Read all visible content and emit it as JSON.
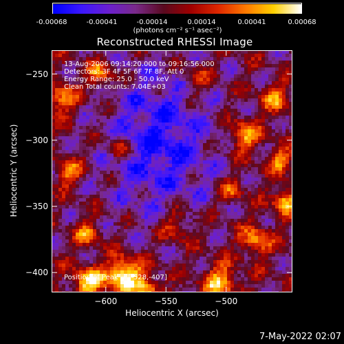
{
  "colorbar": {
    "ticks": [
      "-0.00068",
      "-0.00041",
      "-0.00014",
      "0.00014",
      "0.00041",
      "0.00068"
    ],
    "unit": "(photons cm⁻² s⁻¹ asec⁻²)",
    "colors": [
      "#0000ff",
      "#3b17ff",
      "#6b1fd0",
      "#7a2a8a",
      "#5a0a20",
      "#a00000",
      "#e02800",
      "#ff7a00",
      "#ffd000",
      "#ffffff"
    ]
  },
  "chart_data": {
    "type": "heatmap",
    "title": "Reconstructed RHESSI Image",
    "xlabel": "Heliocentric X (arcsec)",
    "ylabel": "Heliocentric Y (arcsec)",
    "xlim": [
      -645,
      -445
    ],
    "ylim": [
      -415,
      -232
    ],
    "xticks": [
      -600,
      -550,
      -500
    ],
    "yticks": [
      -250,
      -300,
      -350,
      -400
    ],
    "xtick_labels": [
      "−600",
      "−550",
      "−500"
    ],
    "ytick_labels": [
      "−250",
      "−300",
      "−350",
      "−400"
    ],
    "color_range": [
      -0.00068,
      0.00068
    ],
    "annotations": [
      "13-Aug-2006 09:14:20.000 to 09:16:56.000",
      "Detectors: 3F 4F 5F 6F 7F 8F, Att 0",
      "Energy Range: 25.0 - 50.0 keV",
      "Clean    Total counts: 7.04E+03"
    ],
    "peak_label": "Position of Peak = [-528,-407]"
  },
  "timestamp": "7-May-2022 02:07"
}
